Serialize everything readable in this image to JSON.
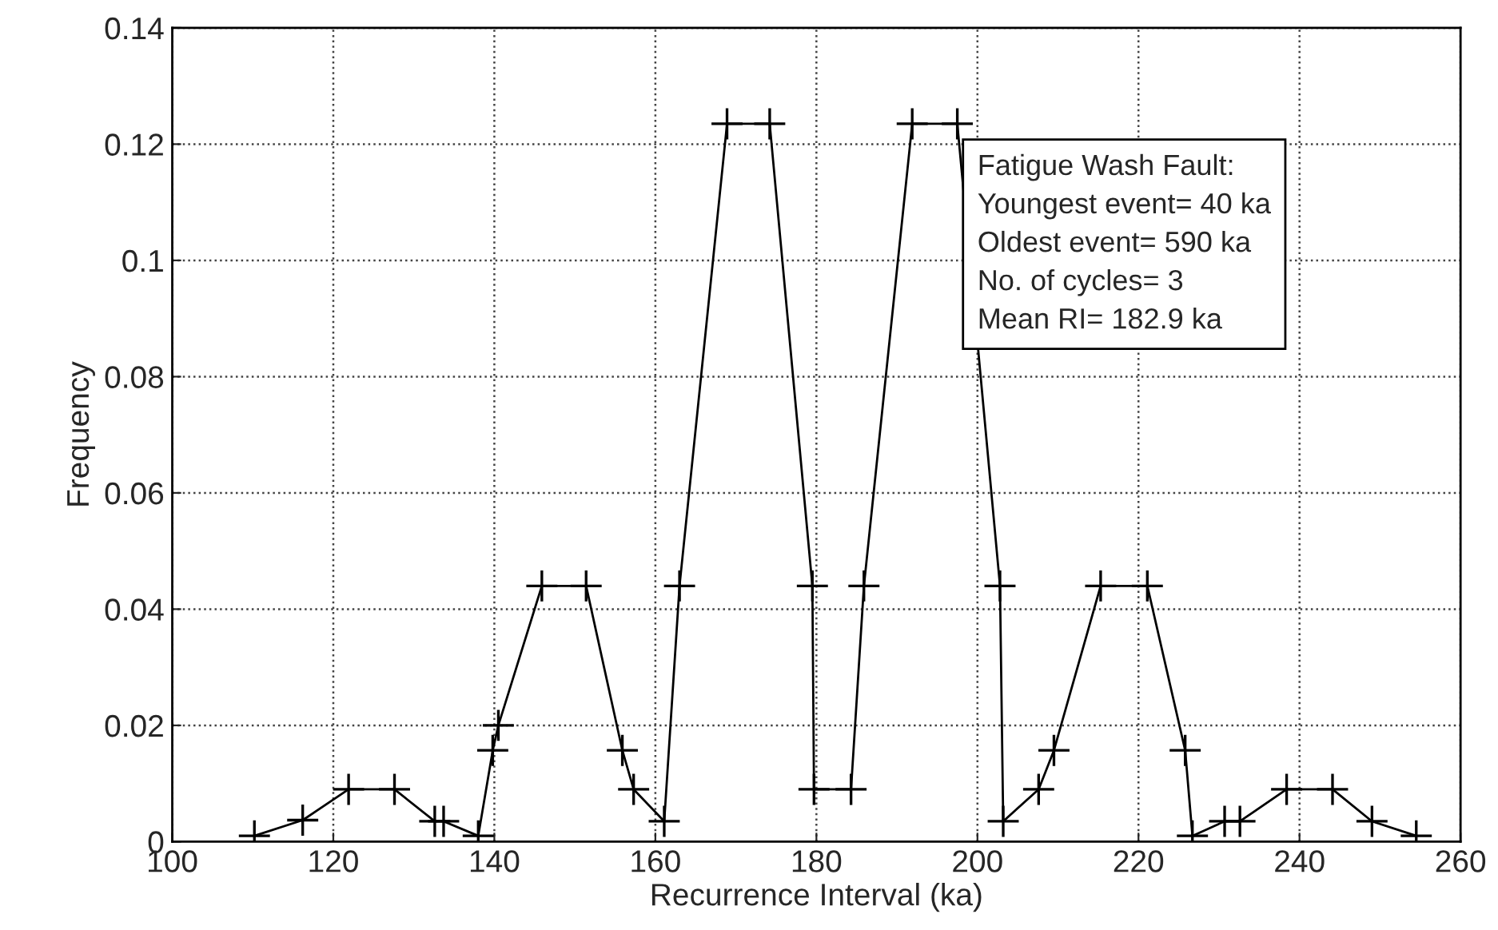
{
  "chart_data": {
    "type": "line",
    "xlabel": "Recurrence Interval (ka)",
    "ylabel": "Frequency",
    "x": [
      110.2,
      116.2,
      121.9,
      127.6,
      132.6,
      133.7,
      138.0,
      139.8,
      140.5,
      145.9,
      151.4,
      155.9,
      157.3,
      161.1,
      163.0,
      168.9,
      174.2,
      179.5,
      179.7,
      184.3,
      185.9,
      191.9,
      197.5,
      202.8,
      203.2,
      207.6,
      209.5,
      215.3,
      221.1,
      225.8,
      226.7,
      230.7,
      232.6,
      238.4,
      244.1,
      249.0,
      254.5
    ],
    "series": [
      {
        "color": "#000000",
        "values": [
          0.001,
          0.0037,
          0.009,
          0.009,
          0.0035,
          0.0035,
          0.001,
          0.0157,
          0.02,
          0.044,
          0.044,
          0.0157,
          0.009,
          0.0035,
          0.044,
          0.1235,
          0.1235,
          0.044,
          0.009,
          0.009,
          0.044,
          0.1235,
          0.1235,
          0.044,
          0.0035,
          0.009,
          0.0157,
          0.044,
          0.044,
          0.0157,
          0.001,
          0.0035,
          0.0035,
          0.009,
          0.009,
          0.0035,
          0.001
        ]
      }
    ],
    "xlim": [
      100,
      260
    ],
    "xticks": [
      100,
      120,
      140,
      160,
      180,
      200,
      220,
      240,
      260
    ],
    "ylim": [
      0,
      0.14
    ],
    "yticks": [
      {
        "value": 0,
        "label": "0"
      },
      0.02,
      0.04,
      0.06,
      0.08,
      {
        "value": 0.1,
        "label": "0.1"
      },
      0.12,
      0.14
    ],
    "grid": true,
    "marker": "cross",
    "line_style": "solid",
    "annotations": [
      "Fatigue Wash Fault:",
      "Youngest event= 40 ka",
      "Oldest event= 590 ka",
      "No. of cycles= 3",
      "Mean RI= 182.9 ka"
    ]
  }
}
